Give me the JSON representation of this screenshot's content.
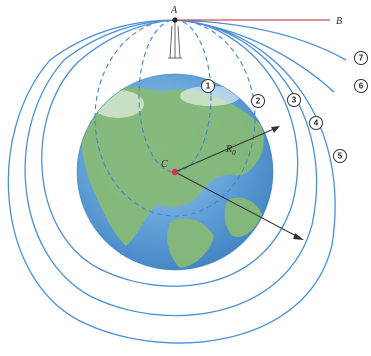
{
  "labels": {
    "point_top": "A",
    "point_end": "B",
    "center": "C",
    "radius": "R",
    "radius_sub": "0"
  },
  "orbit_numbers": [
    "1",
    "2",
    "3",
    "4",
    "5",
    "7",
    "6"
  ],
  "colors": {
    "background": "#ffffff",
    "earth_ocean": "#6fa8d8",
    "earth_land": "#8bbd7b",
    "orbit": "#4a8fd8",
    "escape_line": "#d64a5a",
    "axis": "#333333",
    "center_dot": "#d9304b"
  }
}
